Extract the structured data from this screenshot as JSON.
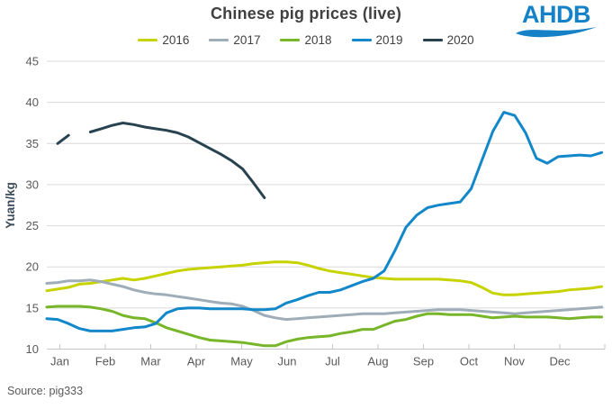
{
  "header": {
    "title": "Chinese pig prices (live)",
    "logo_text": "AHDB"
  },
  "source_note": "Source: pig333",
  "colors": {
    "title_text": "#404040",
    "axis_text": "#595959",
    "axis_title_text": "#3d4c59",
    "gridline": "#d9d9d9",
    "axis_line": "#c6c6c6",
    "logo_blue": "#1581c6",
    "background": "#ffffff"
  },
  "chart_data": {
    "type": "line",
    "title": "Chinese pig prices (live)",
    "xlabel": "",
    "ylabel": "Yuan/kg",
    "ylim": [
      10,
      45
    ],
    "yticks": [
      10,
      15,
      20,
      25,
      30,
      35,
      40,
      45
    ],
    "x_tick_labels": [
      "Jan",
      "Feb",
      "Mar",
      "Apr",
      "May",
      "Jun",
      "Jul",
      "Aug",
      "Sep",
      "Oct",
      "Nov",
      "Dec"
    ],
    "x_unit": "weekly observations (weeks 1-52)",
    "grid": "horizontal gridlines on",
    "legend_position": "top-center",
    "series": [
      {
        "name": "2016",
        "color": "#c7d300",
        "values": [
          17.1,
          17.3,
          17.5,
          17.9,
          18.0,
          18.2,
          18.4,
          18.6,
          18.4,
          18.6,
          18.9,
          19.2,
          19.5,
          19.7,
          19.8,
          19.9,
          20.0,
          20.1,
          20.2,
          20.4,
          20.5,
          20.6,
          20.6,
          20.5,
          20.2,
          19.8,
          19.5,
          19.3,
          19.1,
          18.9,
          18.7,
          18.6,
          18.5,
          18.5,
          18.5,
          18.5,
          18.5,
          18.4,
          18.3,
          18.1,
          17.5,
          16.8,
          16.6,
          16.6,
          16.7,
          16.8,
          16.9,
          17.0,
          17.2,
          17.3,
          17.4,
          17.6
        ]
      },
      {
        "name": "2017",
        "color": "#9fadb8",
        "values": [
          18.0,
          18.1,
          18.3,
          18.3,
          18.4,
          18.2,
          17.9,
          17.6,
          17.2,
          16.9,
          16.7,
          16.6,
          16.4,
          16.2,
          16.0,
          15.8,
          15.6,
          15.5,
          15.2,
          14.7,
          14.1,
          13.8,
          13.6,
          13.7,
          13.8,
          13.9,
          14.0,
          14.1,
          14.2,
          14.3,
          14.3,
          14.3,
          14.4,
          14.5,
          14.6,
          14.7,
          14.8,
          14.8,
          14.8,
          14.7,
          14.6,
          14.5,
          14.4,
          14.3,
          14.4,
          14.5,
          14.6,
          14.7,
          14.8,
          14.9,
          15.0,
          15.1
        ]
      },
      {
        "name": "2018",
        "color": "#77b529",
        "values": [
          15.1,
          15.2,
          15.2,
          15.2,
          15.1,
          14.9,
          14.6,
          14.1,
          13.8,
          13.7,
          13.2,
          12.6,
          12.2,
          11.8,
          11.4,
          11.1,
          11.0,
          10.9,
          10.8,
          10.6,
          10.4,
          10.4,
          10.9,
          11.2,
          11.4,
          11.5,
          11.6,
          11.9,
          12.1,
          12.4,
          12.4,
          12.9,
          13.4,
          13.6,
          14.0,
          14.3,
          14.3,
          14.2,
          14.2,
          14.2,
          14.0,
          13.8,
          13.9,
          14.0,
          13.9,
          13.9,
          13.9,
          13.8,
          13.7,
          13.8,
          13.9,
          13.9
        ]
      },
      {
        "name": "2019",
        "color": "#1287ca",
        "values": [
          13.7,
          13.6,
          13.1,
          12.5,
          12.2,
          12.2,
          12.2,
          12.4,
          12.6,
          12.7,
          13.1,
          14.4,
          14.9,
          15.0,
          15.0,
          14.9,
          14.9,
          14.9,
          14.9,
          14.8,
          14.8,
          14.9,
          15.6,
          16.0,
          16.5,
          16.9,
          16.9,
          17.2,
          17.7,
          18.2,
          18.6,
          19.5,
          22.0,
          24.8,
          26.3,
          27.2,
          27.5,
          27.7,
          27.9,
          29.5,
          33.0,
          36.5,
          38.8,
          38.4,
          36.3,
          33.2,
          32.6,
          33.4,
          33.5,
          33.6,
          33.5,
          33.9
        ]
      },
      {
        "name": "2020",
        "color": "#28434f",
        "values": [
          null,
          35.0,
          36.0,
          null,
          36.4,
          36.8,
          37.2,
          37.5,
          37.3,
          37.0,
          36.8,
          36.6,
          36.3,
          35.8,
          35.1,
          34.4,
          33.7,
          32.9,
          31.9,
          30.2,
          28.4
        ]
      }
    ]
  }
}
